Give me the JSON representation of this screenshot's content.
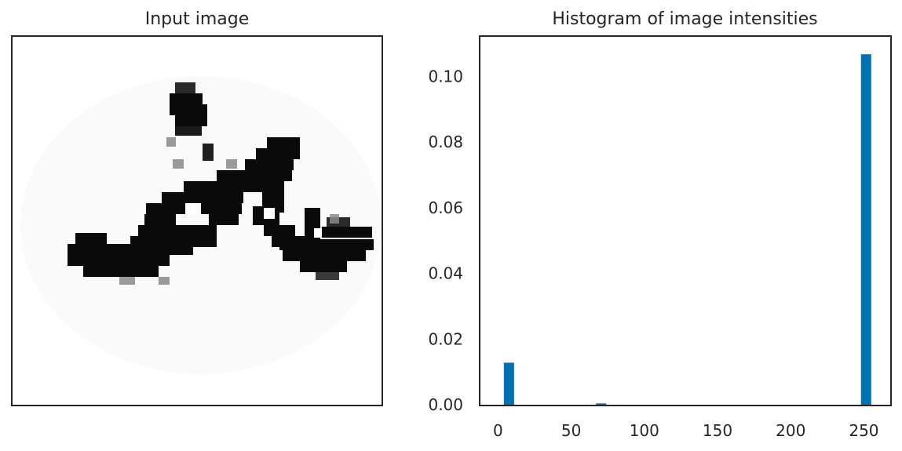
{
  "figure": {
    "left_title": "Input image",
    "right_title": "Histogram of image intensities"
  },
  "image_panel": {
    "content": "handwritten character (dark strokes on light background)",
    "ticks": "none"
  },
  "chart_data": {
    "type": "bar",
    "title": "Histogram of image intensities",
    "xlabel": "",
    "ylabel": "",
    "xlim": [
      -12,
      268
    ],
    "ylim": [
      0,
      0.112
    ],
    "xticks": [
      0,
      50,
      100,
      150,
      200,
      250
    ],
    "yticks": [
      0.0,
      0.02,
      0.04,
      0.06,
      0.08,
      0.1
    ],
    "ytick_labels": [
      "0.00",
      "0.02",
      "0.04",
      "0.06",
      "0.08",
      "0.10"
    ],
    "bar_width": 7,
    "bars": [
      {
        "x": 7.5,
        "value": 0.0128
      },
      {
        "x": 70.5,
        "value": 0.0004
      },
      {
        "x": 251.5,
        "value": 0.1067
      }
    ],
    "bar_color": "#0072b2",
    "grid": false
  }
}
